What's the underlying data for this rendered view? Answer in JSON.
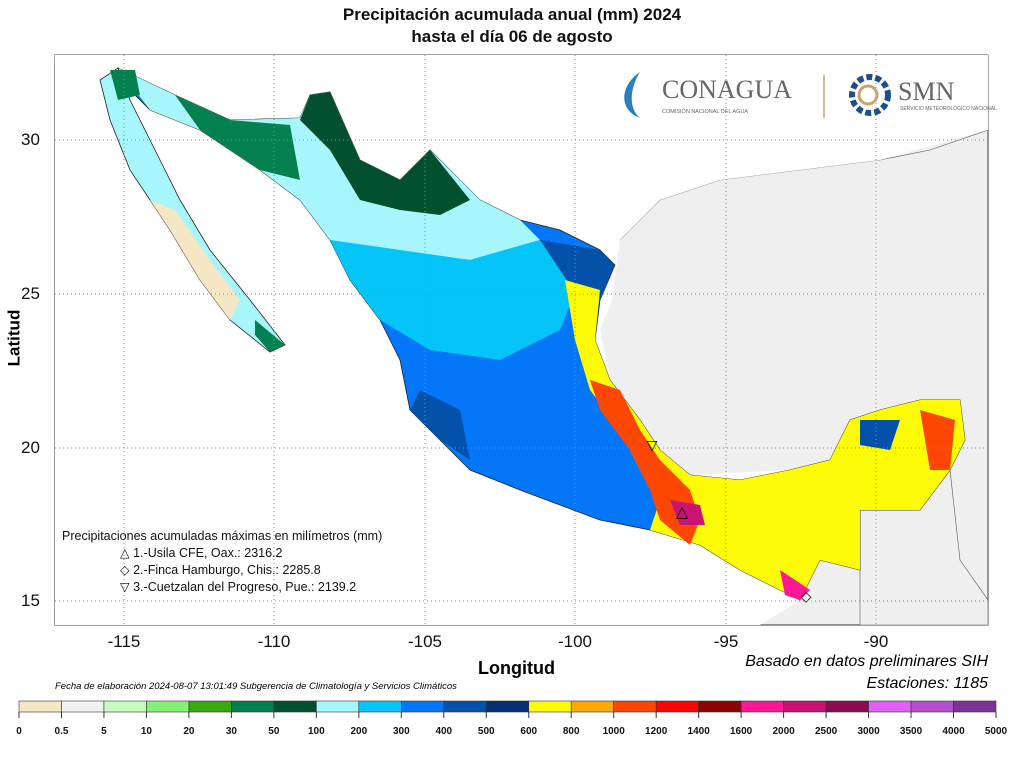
{
  "title": {
    "line1": "Precipitación acumulada anual (mm) 2024",
    "line2": "hasta el día 06 de agosto"
  },
  "logos": {
    "conagua": "CONAGUA",
    "conagua_sub": "COMISIÓN NACIONAL DEL AGUA",
    "smn": "SMN",
    "smn_sub": "SERVICIO METEOROLÓGICO NACIONAL"
  },
  "axes": {
    "xlabel": "Longitud",
    "ylabel": "Latitud",
    "xticks": [
      "-115",
      "-110",
      "-105",
      "-100",
      "-95",
      "-90"
    ],
    "yticks": [
      "30",
      "25",
      "20",
      "15"
    ],
    "xlim": [
      -117.3,
      -86.3
    ],
    "ylim": [
      14.2,
      32.8
    ],
    "grid": true
  },
  "max_stations": {
    "heading": "Precipitaciones acumuladas máximas en milímetros (mm)",
    "items": [
      {
        "symbol": "△",
        "text": "1.-Usila CFE, Oax.: 2316.2"
      },
      {
        "symbol": "◇",
        "text": "2.-Finca Hamburgo, Chis.: 2285.8"
      },
      {
        "symbol": "▽",
        "text": "3.-Cuetzalan del Progreso, Pue.: 2139.2"
      }
    ]
  },
  "footer": {
    "elaboration": "Fecha de elaboración 2024-08-07 13:01:49 Subgerencia de Climatología y Servicios Climáticos",
    "source": "Basado en datos preliminares SIH",
    "stations": "Estaciones:  1185"
  },
  "colorbar": {
    "labels": [
      "0",
      "0.5",
      "5",
      "10",
      "20",
      "30",
      "50",
      "100",
      "200",
      "300",
      "400",
      "500",
      "600",
      "800",
      "1000",
      "1200",
      "1400",
      "1600",
      "2000",
      "2500",
      "3000",
      "3500",
      "4000",
      "5000"
    ],
    "colors": [
      "#f5e6c4",
      "#f2f2f2",
      "#c8fbc0",
      "#86f07a",
      "#3aa80f",
      "#05804f",
      "#02502e",
      "#a6f6fb",
      "#05c4f8",
      "#0476f8",
      "#0351a9",
      "#043071",
      "#fdfb05",
      "#fba904",
      "#fb4703",
      "#fb0404",
      "#8b0303",
      "#fb1795",
      "#cb1375",
      "#8b0b52",
      "#e060f6",
      "#b050cc",
      "#7b3493"
    ]
  }
}
